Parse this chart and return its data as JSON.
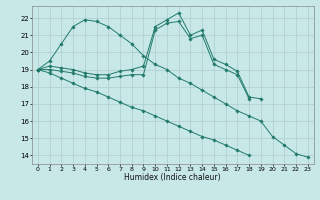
{
  "xlabel": "Humidex (Indice chaleur)",
  "background_color": "#c8e8e8",
  "grid_color": "#b0cccc",
  "line_color": "#217a6b",
  "xlim": [
    -0.5,
    23.5
  ],
  "ylim": [
    13.5,
    22.7
  ],
  "xticks": [
    0,
    1,
    2,
    3,
    4,
    5,
    6,
    7,
    8,
    9,
    10,
    11,
    12,
    13,
    14,
    15,
    16,
    17,
    18,
    19,
    20,
    21,
    22,
    23
  ],
  "yticks": [
    14,
    15,
    16,
    17,
    18,
    19,
    20,
    21,
    22
  ],
  "series": [
    {
      "x": [
        0,
        1,
        2,
        3,
        4,
        5,
        6,
        7,
        8,
        9,
        10,
        11,
        12,
        13,
        14,
        15,
        16,
        17,
        18,
        19,
        20,
        21,
        22,
        23
      ],
      "y": [
        19.0,
        19.2,
        19.1,
        19.0,
        18.8,
        18.7,
        18.7,
        18.9,
        19.0,
        19.2,
        21.5,
        21.9,
        22.3,
        21.0,
        21.3,
        19.6,
        19.3,
        18.9,
        17.4,
        17.3,
        null,
        null,
        null,
        null
      ]
    },
    {
      "x": [
        0,
        1,
        2,
        3,
        4,
        5,
        6,
        7,
        8,
        9,
        10,
        11,
        12,
        13,
        14,
        15,
        16,
        17,
        18,
        19,
        20,
        21,
        22,
        23
      ],
      "y": [
        19.0,
        19.0,
        18.9,
        18.8,
        18.6,
        18.5,
        18.5,
        18.6,
        18.7,
        18.7,
        21.3,
        21.7,
        21.8,
        20.8,
        21.0,
        19.3,
        19.0,
        18.7,
        17.3,
        null,
        null,
        null,
        null,
        null
      ]
    },
    {
      "x": [
        0,
        1,
        2,
        3,
        4,
        5,
        6,
        7,
        8,
        9,
        10,
        11,
        12,
        13,
        14,
        15,
        16,
        17,
        18,
        19,
        20,
        21,
        22,
        23
      ],
      "y": [
        19.0,
        19.5,
        20.5,
        21.5,
        21.9,
        21.8,
        21.5,
        21.0,
        20.5,
        19.8,
        19.3,
        19.0,
        18.5,
        18.2,
        17.8,
        17.4,
        17.0,
        16.6,
        16.3,
        16.0,
        15.1,
        14.6,
        14.1,
        13.9
      ]
    },
    {
      "x": [
        0,
        1,
        2,
        3,
        4,
        5,
        6,
        7,
        8,
        9,
        10,
        11,
        12,
        13,
        14,
        15,
        16,
        17,
        18,
        19,
        20,
        21,
        22,
        23
      ],
      "y": [
        19.0,
        18.8,
        18.5,
        18.2,
        17.9,
        17.7,
        17.4,
        17.1,
        16.8,
        16.6,
        16.3,
        16.0,
        15.7,
        15.4,
        15.1,
        14.9,
        14.6,
        14.3,
        14.0,
        null,
        null,
        null,
        null,
        null
      ]
    }
  ]
}
